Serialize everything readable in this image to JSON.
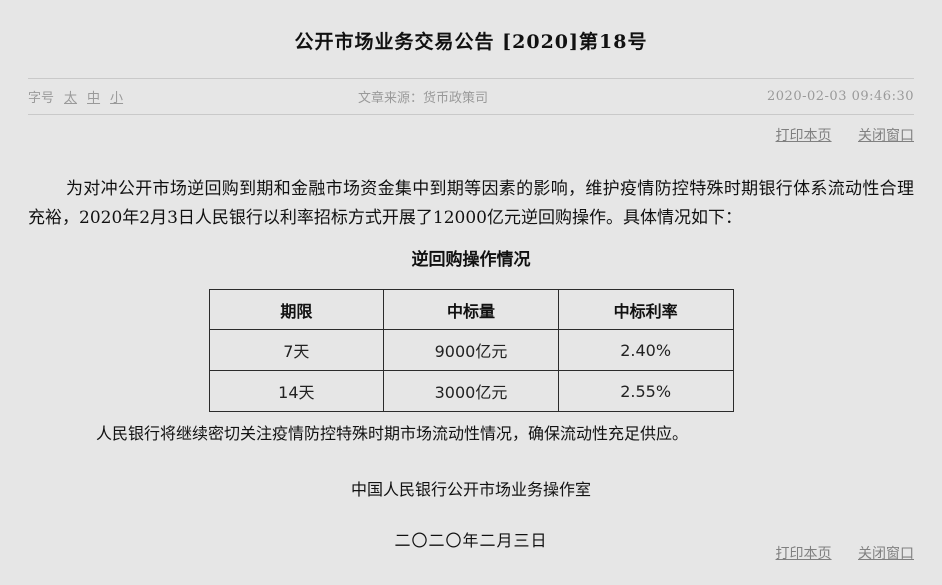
{
  "page": {
    "background": "#e6e6e6",
    "accent_gray": "#9a9a9a",
    "link_gray": "#808080",
    "border_gray": "#c9c9c9",
    "table_border": "#2b2b2b"
  },
  "header": {
    "title": "公开市场业务交易公告  [2020]第18号"
  },
  "meta_bar": {
    "font_size_label": "字号",
    "font_size_options": {
      "large": "太",
      "medium": "中",
      "small": "小"
    },
    "source_label": "文章来源：",
    "source_value": "货币政策司",
    "timestamp": "2020-02-03 09:46:30"
  },
  "actions": {
    "print_label": "打印本页",
    "close_label": "关闭窗口"
  },
  "article": {
    "paragraph1": "为对冲公开市场逆回购到期和金融市场资金集中到期等因素的影响，维护疫情防控特殊时期银行体系流动性合理充裕，2020年2月3日人民银行以利率招标方式开展了12000亿元逆回购操作。具体情况如下：",
    "table_caption": "逆回购操作情况",
    "table": {
      "headers": [
        "期限",
        "中标量",
        "中标利率"
      ],
      "rows": [
        [
          "7天",
          "9000亿元",
          "2.40%"
        ],
        [
          "14天",
          "3000亿元",
          "2.55%"
        ]
      ]
    },
    "paragraph2": "人民银行将继续密切关注疫情防控特殊时期市场流动性情况，确保流动性充足供应。",
    "signature": "中国人民银行公开市场业务操作室",
    "date_line": "二〇二〇年二月三日"
  }
}
